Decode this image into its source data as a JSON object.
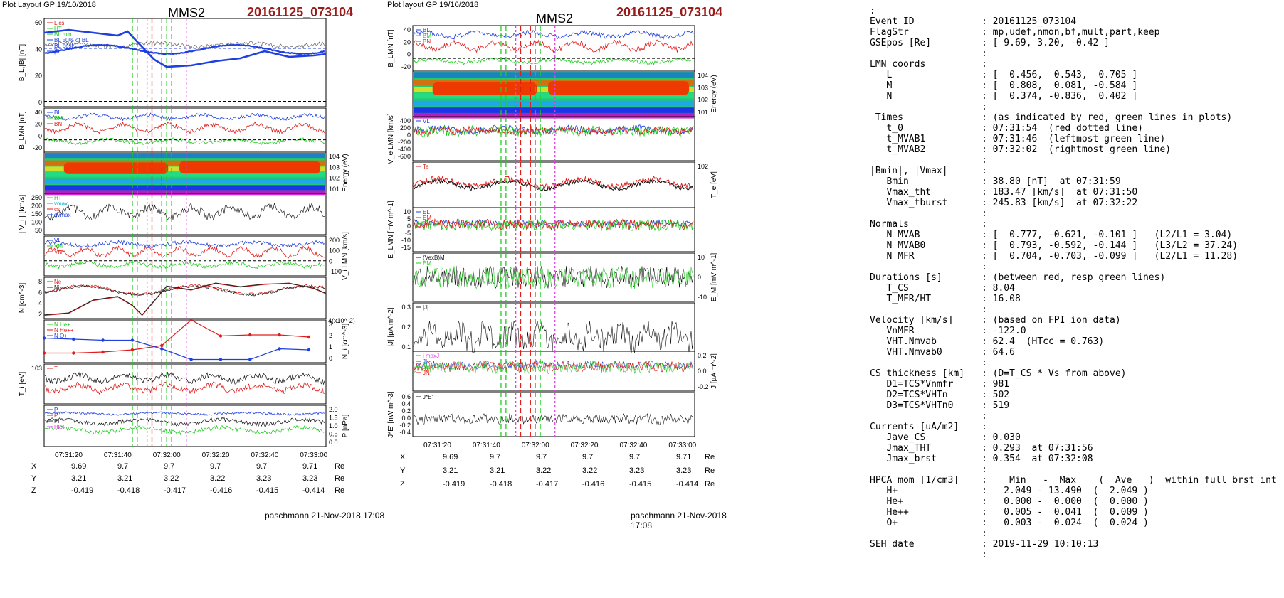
{
  "left_plot": {
    "layout_label": "Plot Layout GP 19/10/2018",
    "spacecraft": "MMS2",
    "event_id": "20161125_073104",
    "footer": "paschmann 21-Nov-2018 17:08",
    "time_ticks": [
      "07:31:20",
      "07:31:40",
      "07:32:00",
      "07:32:20",
      "07:32:40",
      "07:33:00"
    ],
    "panels": [
      {
        "id": "b-total",
        "ylabel": "B_L,|B| [nT]",
        "yticks": [
          "60",
          "40",
          "20",
          "0"
        ],
        "legend": [
          "L cs",
          "HT",
          "BL min",
          "BL 50% of BL",
          "BL post",
          "|B|"
        ]
      },
      {
        "id": "b-lmn",
        "ylabel": "B_LMN [nT]",
        "yticks": [
          "40",
          "20",
          "0",
          "-20"
        ],
        "legend": [
          "BL",
          "BM",
          "BN"
        ]
      },
      {
        "id": "ion-spec",
        "ylabel": "Energy (eV)",
        "yticks": [
          "10^4",
          "10^3",
          "10^2",
          "10^1"
        ]
      },
      {
        "id": "vi-mag",
        "ylabel": "| V_i | [km/s]",
        "yticks": [
          "250",
          "200",
          "150",
          "100",
          "50"
        ],
        "legend": [
          "HT",
          "vmax",
          "cs",
          "dvmax"
        ]
      },
      {
        "id": "vi-lmn",
        "ylabel": "V_i LMN [km/s]",
        "yticks": [
          "200",
          "100",
          "0",
          "-100"
        ],
        "legend": [
          "VL",
          "VM",
          "VN"
        ]
      },
      {
        "id": "density",
        "ylabel": "N [cm^-3]",
        "yticks": [
          "8",
          "6",
          "4",
          "2"
        ],
        "legend": [
          "Ne",
          "Ni"
        ]
      },
      {
        "id": "hpca",
        "ylabel": "N_i [cm^-3]",
        "scale_label": "4(x10^-2)",
        "yticks": [
          "3",
          "2",
          "1",
          "0"
        ],
        "legend": [
          "N He+",
          "N He++",
          "N O+"
        ]
      },
      {
        "id": "ti",
        "ylabel": "T_i [eV]",
        "yticks": [
          "10^3"
        ],
        "legend": [
          "Ti"
        ]
      },
      {
        "id": "pressure",
        "ylabel": "P [nPa]",
        "yticks": [
          "2.0",
          "1.5",
          "1.0",
          "0.5",
          "0.0"
        ],
        "legend": [
          "P",
          "P",
          "Pi",
          "Ptot"
        ]
      }
    ],
    "positions": {
      "labels": [
        "X",
        "Y",
        "Z"
      ],
      "unit": "Re",
      "X": [
        "9.69",
        "9.7",
        "9.7",
        "9.7",
        "9.7",
        "9.71"
      ],
      "Y": [
        "3.21",
        "3.21",
        "3.22",
        "3.22",
        "3.23",
        "3.23"
      ],
      "Z": [
        "-0.419",
        "-0.418",
        "-0.417",
        "-0.416",
        "-0.415",
        "-0.414"
      ]
    }
  },
  "middle_plot": {
    "layout_label": "Plot layout GP 19/10/2018",
    "spacecraft": "MMS2",
    "event_id": "20161125_073104",
    "footer": "paschmann 21-Nov-2018 17:08",
    "time_ticks": [
      "07:31:20",
      "07:31:40",
      "07:32:00",
      "07:32:20",
      "07:32:40",
      "07:33:00"
    ],
    "panels": [
      {
        "id": "b-lmn",
        "ylabel": "B_LMN [nT]",
        "yticks": [
          "40",
          "20",
          "0",
          "-20"
        ],
        "legend": [
          "BL",
          "BM",
          "BN"
        ]
      },
      {
        "id": "e-spec",
        "ylabel": "Energy (eV)",
        "yticks": [
          "10^4",
          "10^3",
          "10^2",
          "10^1"
        ]
      },
      {
        "id": "ve-lmn",
        "ylabel": "V_e LMN [km/s]",
        "yticks": [
          "400",
          "200",
          "0",
          "-200",
          "-400",
          "-600"
        ],
        "legend": [
          "VL"
        ]
      },
      {
        "id": "te",
        "ylabel": "T_e [eV]",
        "yticks": [
          "10^2"
        ],
        "legend": [
          "Te"
        ]
      },
      {
        "id": "e-lmn",
        "ylabel": "E_LMN [mV m^-1]",
        "yticks": [
          "10",
          "5",
          "0",
          "-5",
          "-10",
          "-15"
        ],
        "legend": [
          "EL",
          "EM",
          "EN"
        ]
      },
      {
        "id": "em",
        "ylabel": "E_M [mV m^-1]",
        "yticks": [
          "10",
          "0",
          "-10"
        ],
        "legend": [
          "(VexB)M",
          "EM"
        ]
      },
      {
        "id": "j-mag",
        "ylabel": "|J| [µA m^-2]",
        "yticks": [
          "0.3",
          "0.2",
          "0.1"
        ],
        "legend": [
          "|J|"
        ]
      },
      {
        "id": "j-lmn",
        "ylabel": "J [µA m^-2]",
        "yticks": [
          "0.2",
          "0.0",
          "-0.2"
        ],
        "legend": [
          "j maxJ",
          "JL",
          "JM",
          "JN"
        ]
      },
      {
        "id": "jdote",
        "ylabel": "J*E' [nW m^-3]",
        "yticks": [
          "0.6",
          "0.4",
          "0.2",
          "0.0",
          "-0.2",
          "-0.4"
        ],
        "legend": [
          "J*E'"
        ]
      }
    ],
    "positions": {
      "labels": [
        "X",
        "Y",
        "Z"
      ],
      "unit": "Re",
      "X": [
        "9.69",
        "9.7",
        "9.7",
        "9.7",
        "9.7",
        "9.71"
      ],
      "Y": [
        "3.21",
        "3.21",
        "3.22",
        "3.22",
        "3.23",
        "3.23"
      ],
      "Z": [
        "-0.419",
        "-0.418",
        "-0.417",
        "-0.416",
        "-0.415",
        "-0.414"
      ]
    }
  },
  "chart_data": [
    {
      "type": "line",
      "title": "MMS2 20161125_073104",
      "xlabel": "",
      "ylabel": "B_L,|B| [nT]",
      "x": [
        "07:31:10",
        "07:31:20",
        "07:31:30",
        "07:31:40",
        "07:31:44",
        "07:31:50",
        "07:31:55",
        "07:32:00",
        "07:32:10",
        "07:32:20",
        "07:32:30",
        "07:32:40",
        "07:32:50",
        "07:33:00",
        "07:33:05"
      ],
      "series": [
        {
          "name": "BL",
          "values": [
            52,
            54,
            52,
            50,
            53,
            42,
            33,
            28,
            29,
            32,
            34,
            39,
            35,
            36,
            37
          ]
        },
        {
          "name": "|B|",
          "values": [
            55,
            56,
            55,
            54,
            57,
            45,
            38,
            35,
            38,
            40,
            42,
            40,
            43,
            41,
            44
          ]
        }
      ],
      "ylim": [
        0,
        62
      ]
    },
    {
      "type": "line",
      "title": "",
      "ylabel": "N [cm^-3]",
      "x": [
        "07:31:10",
        "07:31:20",
        "07:31:30",
        "07:31:40",
        "07:31:46",
        "07:31:50",
        "07:32:00",
        "07:32:10",
        "07:32:20",
        "07:32:30",
        "07:32:40",
        "07:32:50",
        "07:33:00",
        "07:33:05"
      ],
      "series": [
        {
          "name": "Ne",
          "values": [
            1.6,
            2,
            4.5,
            5.2,
            3.5,
            1.6,
            7.2,
            6.5,
            7.8,
            7.1,
            7.6,
            7.9,
            6.8,
            5.8
          ]
        },
        {
          "name": "Ni",
          "values": [
            1.7,
            2.1,
            4.6,
            5.3,
            3.6,
            1.7,
            7.3,
            6.6,
            7.9,
            7.2,
            7.7,
            7.8,
            6.9,
            5.9
          ]
        }
      ],
      "ylim": [
        1,
        9
      ]
    },
    {
      "type": "line",
      "title": "",
      "ylabel": "N_i [cm^-3]",
      "x": [
        "07:31:10",
        "07:31:22",
        "07:31:34",
        "07:31:46",
        "07:31:58",
        "07:32:10",
        "07:32:22",
        "07:32:34",
        "07:32:46",
        "07:32:58"
      ],
      "series": [
        {
          "name": "N He++",
          "values": [
            0.9,
            0.9,
            1.0,
            1.2,
            1.6,
            4.0,
            2.5,
            2.6,
            2.6,
            2.4
          ]
        },
        {
          "name": "N O+",
          "values": [
            2.3,
            2.2,
            2.1,
            2.1,
            1.3,
            0.3,
            0.3,
            0.3,
            1.3,
            1.2
          ]
        }
      ],
      "ylim": [
        0,
        4
      ]
    }
  ],
  "info": {
    "lines": [
      {
        "k": ":",
        "v": ""
      },
      {
        "k": "Event ID",
        "v": ": 20161125_073104"
      },
      {
        "k": "FlagStr",
        "v": ": mp,udef,nmon,bf,mult,part,keep"
      },
      {
        "k": "GSEpos [Re]",
        "v": ": [ 9.69, 3.20, -0.42 ]"
      },
      {
        "k": "",
        "v": ":"
      },
      {
        "k": "LMN coords",
        "v": ":"
      },
      {
        "k": "   L",
        "v": ": [  0.456,  0.543,  0.705 ]"
      },
      {
        "k": "   M",
        "v": ": [  0.808,  0.081, -0.584 ]"
      },
      {
        "k": "   N",
        "v": ": [  0.374, -0.836,  0.402 ]"
      },
      {
        "k": "",
        "v": ":"
      },
      {
        "k": " Times",
        "v": ": (as indicated by red, green lines in plots)"
      },
      {
        "k": "   t_0",
        "v": ": 07:31:54  (red dotted line)"
      },
      {
        "k": "   t_MVAB1",
        "v": ": 07:31:46  (leftmost green line)"
      },
      {
        "k": "   t_MVAB2",
        "v": ": 07:32:02  (rightmost green line)"
      },
      {
        "k": "",
        "v": ":"
      },
      {
        "k": "|Bmin|, |Vmax|",
        "v": ":"
      },
      {
        "k": "   Bmin",
        "v": ": 38.80 [nT]  at 07:31:59"
      },
      {
        "k": "   Vmax_tht",
        "v": ": 183.47 [km/s]  at 07:31:50"
      },
      {
        "k": "   Vmax_tburst",
        "v": ": 245.83 [km/s]  at 07:32:22"
      },
      {
        "k": "",
        "v": ":"
      },
      {
        "k": "Normals",
        "v": ":"
      },
      {
        "k": "   N MVAB",
        "v": ": [  0.777, -0.621, -0.101 ]   (L2/L1 = 3.04)"
      },
      {
        "k": "   N MVAB0",
        "v": ": [  0.793, -0.592, -0.144 ]   (L3/L2 = 37.24)"
      },
      {
        "k": "   N MFR",
        "v": ": [  0.704, -0.703, -0.099 ]   (L2/L1 = 11.28)"
      },
      {
        "k": "",
        "v": ":"
      },
      {
        "k": "Durations [s]",
        "v": ": (between red, resp green lines)"
      },
      {
        "k": "   T_CS",
        "v": ": 8.04"
      },
      {
        "k": "   T_MFR/HT",
        "v": ": 16.08"
      },
      {
        "k": "",
        "v": ":"
      },
      {
        "k": "Velocity [km/s]",
        "v": ": (based on FPI ion data)"
      },
      {
        "k": "   VnMFR",
        "v": ": -122.0"
      },
      {
        "k": "   VHT.Nmvab",
        "v": ": 62.4  (HTcc = 0.763)"
      },
      {
        "k": "   VHT.Nmvab0",
        "v": ": 64.6"
      },
      {
        "k": "",
        "v": ":"
      },
      {
        "k": "CS thickness [km]",
        "v": ": (D=T_CS * Vs from above)"
      },
      {
        "k": "   D1=TCS*Vnmfr",
        "v": ": 981"
      },
      {
        "k": "   D2=TCS*VHTn",
        "v": ": 502"
      },
      {
        "k": "   D3=TCS*VHTn0",
        "v": ": 519"
      },
      {
        "k": "",
        "v": ":"
      },
      {
        "k": "Currents [uA/m2]",
        "v": ":"
      },
      {
        "k": "   Jave_CS",
        "v": ": 0.030"
      },
      {
        "k": "   Jmax_THT",
        "v": ": 0.293  at 07:31:56"
      },
      {
        "k": "   Jmax_brst",
        "v": ": 0.354  at 07:32:08"
      },
      {
        "k": "",
        "v": ":"
      },
      {
        "k": "HPCA mom [1/cm3]",
        "v": ":    Min   -  Max    (  Ave   )  within full brst int"
      },
      {
        "k": "   H+",
        "v": ":   2.049 - 13.490  (  2.049 )"
      },
      {
        "k": "   He+",
        "v": ":   0.000 -  0.000  (  0.000 )"
      },
      {
        "k": "   He++",
        "v": ":   0.005 -  0.041  (  0.009 )"
      },
      {
        "k": "   O+",
        "v": ":   0.003 -  0.024  (  0.024 )"
      },
      {
        "k": "",
        "v": ":"
      },
      {
        "k": "SEH date",
        "v": ": 2019-11-29 10:10:13"
      },
      {
        "k": "",
        "v": ":"
      }
    ]
  },
  "colors": {
    "event_red": "#9b1b1b",
    "blue": "#1f3fe0",
    "green": "#22cc22",
    "red": "#e01c1c",
    "magenta": "#e040e0",
    "black": "#111111"
  }
}
